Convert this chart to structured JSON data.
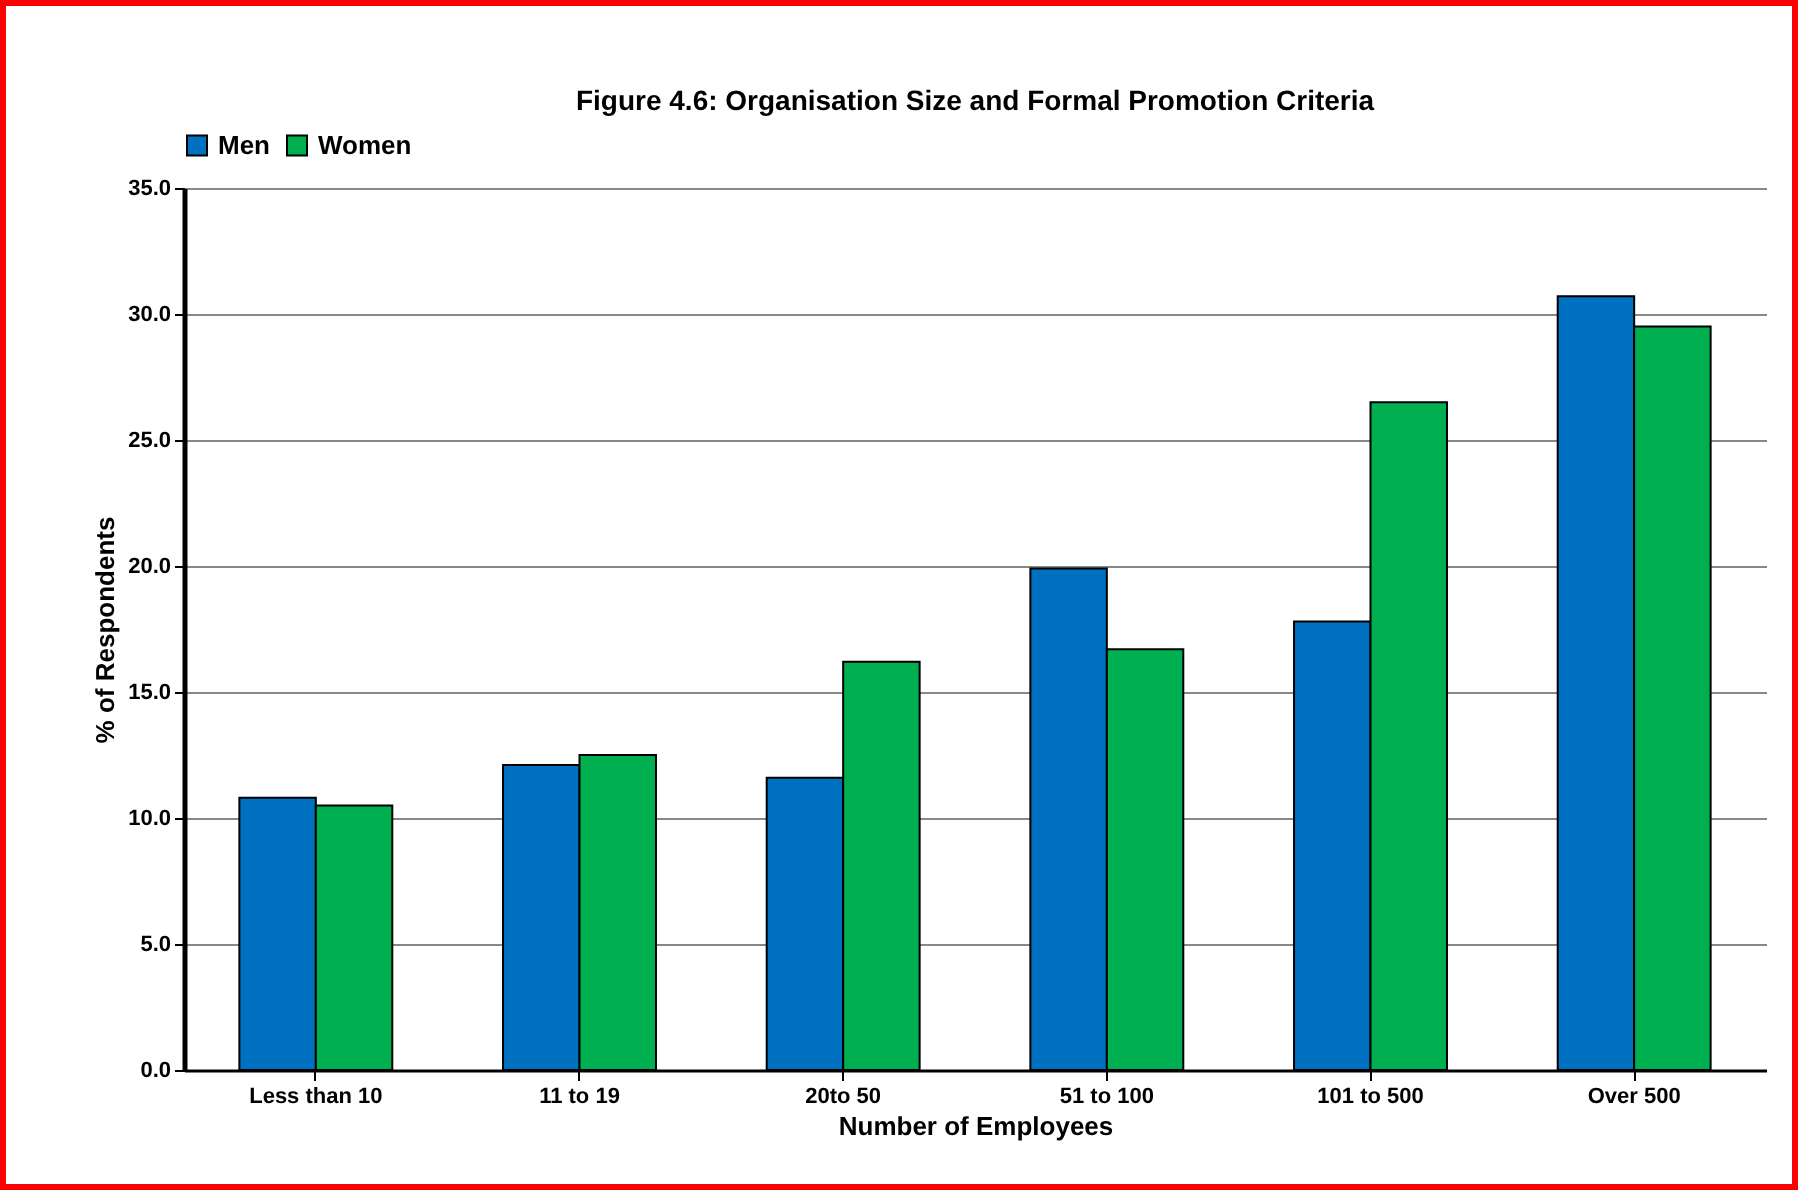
{
  "chart_data": {
    "type": "bar",
    "title": "Figure 4.6: Organisation Size and Formal Promotion Criteria",
    "xlabel": "Number of Employees",
    "ylabel": "% of Respondents",
    "categories": [
      "Less than 10",
      "11 to 19",
      "20to 50",
      "51 to 100",
      "101 to 500",
      "Over 500"
    ],
    "series": [
      {
        "name": "Men",
        "color": "#0070c0",
        "values": [
          10.8,
          12.1,
          11.6,
          19.9,
          17.8,
          30.7
        ]
      },
      {
        "name": "Women",
        "color": "#00b050",
        "values": [
          10.5,
          12.5,
          16.2,
          16.7,
          26.5,
          29.5
        ]
      }
    ],
    "ylim": [
      0,
      35
    ],
    "yticks": [
      {
        "value": 0,
        "label": "0.0"
      },
      {
        "value": 5,
        "label": "5.0"
      },
      {
        "value": 10,
        "label": "10.0"
      },
      {
        "value": 15,
        "label": "15.0"
      },
      {
        "value": 20,
        "label": "20.0"
      },
      {
        "value": 25,
        "label": "25.0"
      },
      {
        "value": 30,
        "label": "30.0"
      },
      {
        "value": 35,
        "label": "35.0"
      }
    ],
    "grid": "y",
    "legend": "top"
  }
}
